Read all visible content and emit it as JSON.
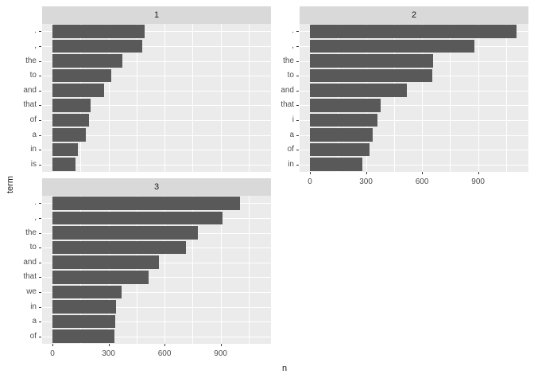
{
  "chart_data": {
    "type": "bar",
    "orientation": "horizontal",
    "title": "",
    "xlabel": "n",
    "ylabel": "term",
    "x_ticks": [
      0,
      300,
      600,
      900
    ],
    "x_minor_ticks": [
      150,
      450,
      750,
      1050
    ],
    "xlim": [
      -55,
      1170
    ],
    "grid": true,
    "legend": false,
    "facets": [
      {
        "label": "1",
        "categories": [
          ".",
          ",",
          "the",
          "to",
          "and",
          "that",
          "of",
          "a",
          "in",
          "is"
        ],
        "values": [
          495,
          480,
          375,
          315,
          275,
          205,
          195,
          180,
          135,
          125
        ]
      },
      {
        "label": "2",
        "categories": [
          ".",
          ",",
          "the",
          "to",
          "and",
          "that",
          "i",
          "a",
          "of",
          "in"
        ],
        "values": [
          1105,
          880,
          660,
          655,
          520,
          380,
          360,
          335,
          320,
          280
        ]
      },
      {
        "label": "3",
        "categories": [
          ".",
          ",",
          "the",
          "to",
          "and",
          "that",
          "we",
          "in",
          "a",
          "of"
        ],
        "values": [
          1005,
          910,
          780,
          715,
          570,
          515,
          370,
          340,
          335,
          330
        ]
      }
    ],
    "colors": {
      "bar": "#595959",
      "panel_bg": "#EBEBEB",
      "strip_bg": "#D9D9D9",
      "grid": "#FFFFFF",
      "tick_text": "#4D4D4D",
      "title_text": "#1A1A1A",
      "tick_mark": "#333333",
      "background": "#FFFFFF"
    }
  }
}
